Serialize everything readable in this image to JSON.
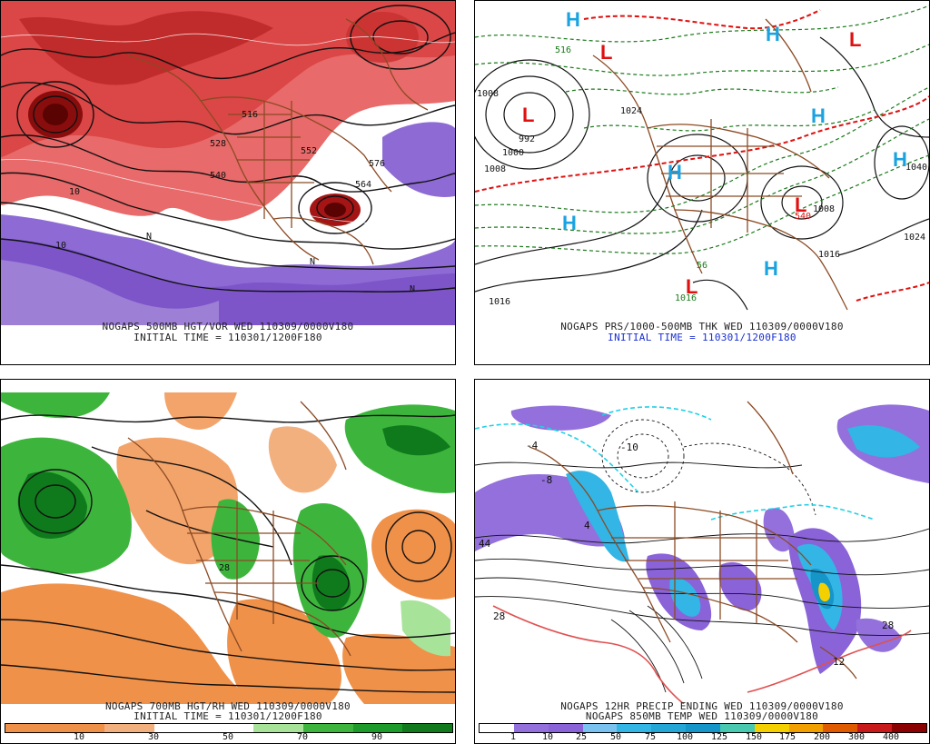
{
  "panels": [
    {
      "caption1": "NOGAPS 500MB HGT/VOR WED 110309/0000V180",
      "caption2": "INITIAL TIME = 110301/1200F180",
      "labels": [
        "552",
        "540",
        "528",
        "564",
        "516",
        "10",
        "10",
        "N",
        "N",
        "N",
        "576"
      ]
    },
    {
      "caption1": "NOGAPS PRS/1000-500MB THK WED 110309/0000V180",
      "caption2": "INITIAL TIME = 110301/1200F180",
      "labels": [
        "L",
        "L",
        "L",
        "L",
        "L",
        "H",
        "H",
        "H",
        "H",
        "H",
        "H",
        "H",
        "992",
        "1000",
        "1008",
        "1008",
        "1016",
        "1016",
        "1024",
        "1040",
        "1008",
        "1024",
        "1016",
        "540",
        "516",
        "56"
      ]
    },
    {
      "caption1": "NOGAPS 700MB HGT/RH WED 110309/0000V180",
      "caption2": "INITIAL TIME = 110301/1200F180",
      "colorbar": {
        "colors": [
          "#f0914a",
          "#f0914a",
          "#f3b07f",
          "#ffffff",
          "#ffffff",
          "#a8e39a",
          "#3db53d",
          "#1c9a2a",
          "#107a1c"
        ],
        "ticks": [
          "10",
          "30",
          "50",
          "70",
          "90"
        ]
      }
    },
    {
      "caption1": "NOGAPS 12HR PRECIP ENDING WED 110309/0000V180",
      "caption2": "NOGAPS 850MB TEMP WED 110309/0000V180",
      "labels": [
        "28",
        "44",
        "12",
        "-10",
        "-4",
        "-8",
        "4",
        "28"
      ],
      "colorbar": {
        "colors": [
          "#ffffff",
          "#9370db",
          "#8a63d8",
          "#7ac3f0",
          "#33b5e5",
          "#24a6d6",
          "#1595c8",
          "#48c9b0",
          "#f5d000",
          "#f2a000",
          "#e05a00",
          "#c81a1a",
          "#8b0000"
        ],
        "ticks": [
          "1",
          "10",
          "25",
          "50",
          "75",
          "100",
          "125",
          "150",
          "175",
          "200",
          "300",
          "400"
        ]
      }
    }
  ]
}
